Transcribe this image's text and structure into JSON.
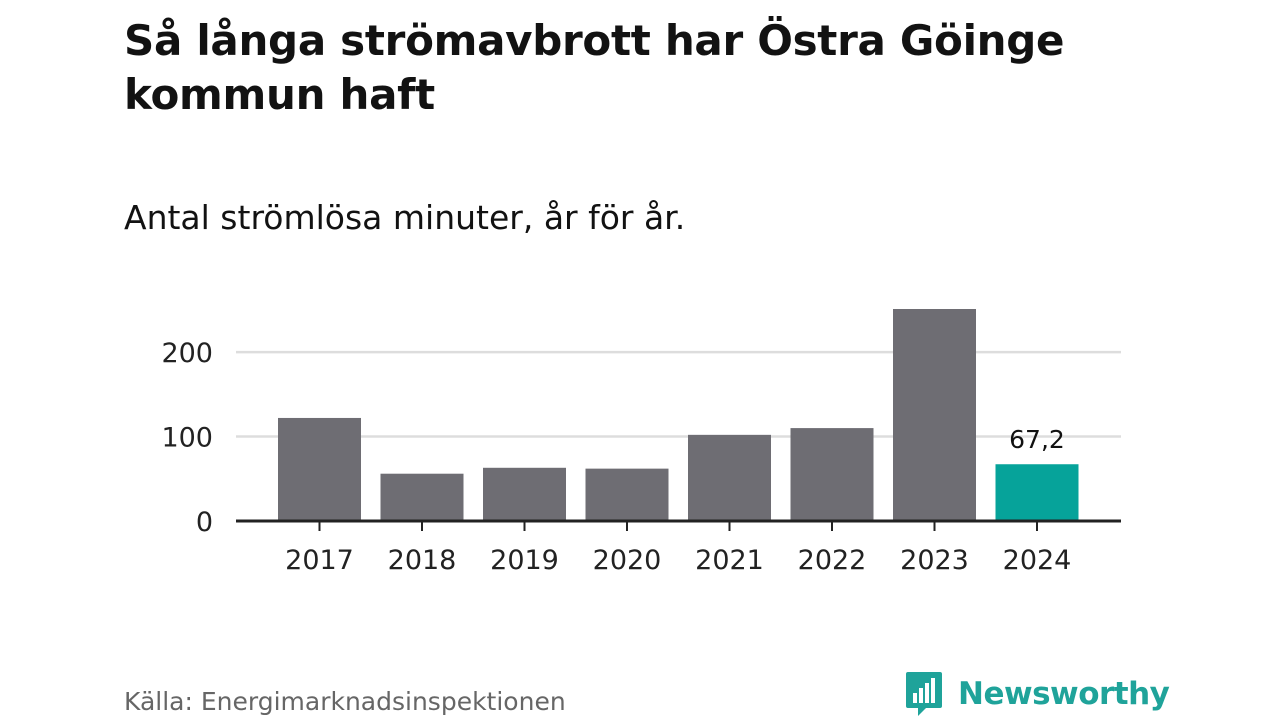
{
  "title": "Så långa strömavbrott har Östra Göinge kommun haft",
  "subtitle": "Antal strömlösa minuter, år för år.",
  "source": "Källa: Energimarknadsinspektionen",
  "brand": "Newsworthy",
  "colors": {
    "bar": "#6e6d73",
    "highlight": "#06a39a",
    "grid": "#dddddd",
    "axis": "#222222",
    "brand": "#1fa39a"
  },
  "chart_data": {
    "type": "bar",
    "title": "Så långa strömavbrott har Östra Göinge kommun haft",
    "subtitle": "Antal strömlösa minuter, år för år.",
    "xlabel": "",
    "ylabel": "",
    "categories": [
      "2017",
      "2018",
      "2019",
      "2020",
      "2021",
      "2022",
      "2023",
      "2024"
    ],
    "values": [
      122,
      56,
      63,
      62,
      102,
      110,
      251,
      67.2
    ],
    "highlight_index": 7,
    "value_labels": {
      "7": "67,2"
    },
    "yticks": [
      0,
      100,
      200
    ],
    "ylim": [
      0,
      251
    ],
    "grid": true,
    "legend": "none"
  }
}
